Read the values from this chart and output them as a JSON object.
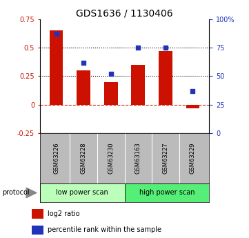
{
  "title": "GDS1636 / 1130406",
  "samples": [
    "GSM63226",
    "GSM63228",
    "GSM63230",
    "GSM63163",
    "GSM63227",
    "GSM63229"
  ],
  "log2_ratio": [
    0.65,
    0.3,
    0.2,
    0.35,
    0.47,
    -0.03
  ],
  "percentile_rank": [
    87,
    62,
    52,
    75,
    75,
    37
  ],
  "bar_color": "#cc1100",
  "dot_color": "#2233bb",
  "ylim_left": [
    -0.25,
    0.75
  ],
  "ylim_right": [
    0,
    100
  ],
  "yticks_left": [
    -0.25,
    0,
    0.25,
    0.5,
    0.75
  ],
  "yticks_right": [
    0,
    25,
    50,
    75,
    100
  ],
  "hlines": [
    0.25,
    0.5
  ],
  "protocol_labels": [
    "low power scan",
    "high power scan"
  ],
  "protocol_groups": [
    3,
    3
  ],
  "protocol_colors": [
    "#bbffbb",
    "#55ee77"
  ],
  "legend_bar_label": "log2 ratio",
  "legend_dot_label": "percentile rank within the sample",
  "left_tick_color": "#cc1100",
  "right_tick_color": "#2233bb",
  "bg_color": "#ffffff",
  "zero_line_color": "#cc2200",
  "bar_width": 0.5,
  "dot_size": 25,
  "figsize": [
    3.61,
    3.45
  ],
  "dpi": 100
}
